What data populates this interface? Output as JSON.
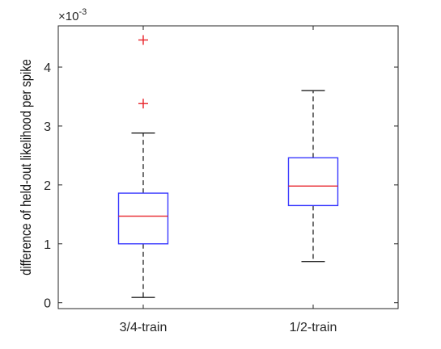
{
  "chart_data": {
    "type": "box",
    "ylabel": "difference of held-out likelihood per spike",
    "exponent_label": "×10",
    "exponent_power": "-3",
    "ylim": [
      -0.0001,
      0.0047
    ],
    "yticks": [
      0,
      0.001,
      0.002,
      0.003,
      0.004
    ],
    "ytick_labels": [
      "0",
      "1",
      "2",
      "3",
      "4"
    ],
    "categories": [
      "3/4-train",
      "1/2-train"
    ],
    "boxes": [
      {
        "label": "3/4-train",
        "whisker_low": 9e-05,
        "q1": 0.001,
        "median": 0.00147,
        "q3": 0.00186,
        "whisker_high": 0.00288,
        "outliers": [
          0.00338,
          0.00446
        ]
      },
      {
        "label": "1/2-train",
        "whisker_low": 0.0007,
        "q1": 0.00165,
        "median": 0.00198,
        "q3": 0.00246,
        "whisker_high": 0.0036,
        "outliers": []
      }
    ],
    "colors": {
      "box": "#3a3aff",
      "median": "#e8232a",
      "whisker": "#505050",
      "outlier": "#e8232a",
      "axis": "#262626"
    },
    "grid": false
  }
}
